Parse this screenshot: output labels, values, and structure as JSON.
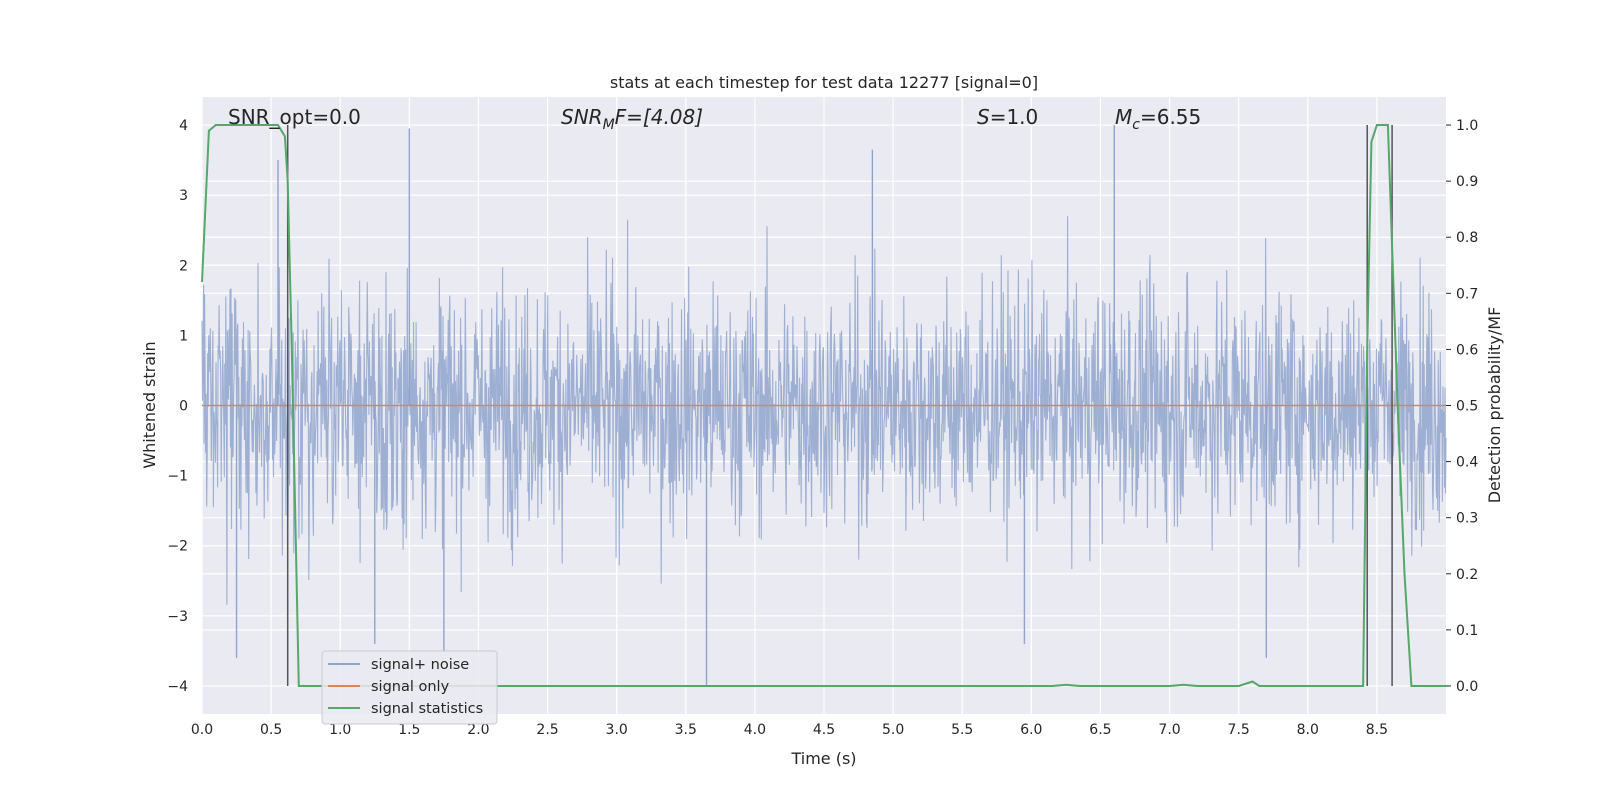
{
  "chart_data": {
    "type": "line",
    "title": "stats at each timestep for test data 12277 [signal=0]",
    "xlabel": "Time (s)",
    "ylabel": "Whitened strain",
    "y2label": "Detection probability/MF",
    "xlim": [
      0.0,
      9.0
    ],
    "ylim": [
      -4.4,
      4.4
    ],
    "y2lim": [
      -0.05,
      1.05
    ],
    "x_ticks": [
      "0.0",
      "0.5",
      "1.0",
      "1.5",
      "2.0",
      "2.5",
      "3.0",
      "3.5",
      "4.0",
      "4.5",
      "5.0",
      "5.5",
      "6.0",
      "6.5",
      "7.0",
      "7.5",
      "8.0",
      "8.5"
    ],
    "y_ticks": [
      "4",
      "3",
      "2",
      "1",
      "0",
      "−1",
      "−2",
      "−3",
      "−4"
    ],
    "y2_ticks": [
      "1.0",
      "0.9",
      "0.8",
      "0.7",
      "0.6",
      "0.5",
      "0.4",
      "0.3",
      "0.2",
      "0.1",
      "0.0"
    ],
    "grid": true,
    "legend_position": "lower-left",
    "annotations": {
      "snr_opt": "SNR_opt=0.0",
      "snr_mf_name": "SNR",
      "snr_mf_sub": "M",
      "snr_mf_rest": "F=[4.08]",
      "s_name": "S",
      "s_rest": "=1.0",
      "mc_name": "M",
      "mc_sub": "c",
      "mc_rest": "=6.55"
    },
    "series": [
      {
        "name": "signal+ noise",
        "color": "#8fa4cc",
        "note_values": "dense whitened strain noise, roughly |y| <= 2.5 with spikes to about +/-4",
        "spike_points": [
          [
            0.55,
            3.5
          ],
          [
            1.5,
            3.95
          ],
          [
            4.85,
            3.65
          ],
          [
            6.6,
            4.0
          ],
          [
            3.65,
            -4.0
          ],
          [
            0.25,
            -3.6
          ],
          [
            1.25,
            -3.4
          ],
          [
            1.75,
            -3.5
          ],
          [
            7.7,
            -3.6
          ],
          [
            5.95,
            -3.4
          ]
        ]
      },
      {
        "name": "signal only",
        "color": "#dd8452",
        "values_x": [
          0.0,
          9.0
        ],
        "values_y": [
          0.0,
          0.0
        ]
      },
      {
        "name": "signal statistics",
        "color": "#55a868",
        "axis": "right",
        "x": [
          0.0,
          0.05,
          0.1,
          0.15,
          0.2,
          0.3,
          0.4,
          0.5,
          0.55,
          0.6,
          0.62,
          0.65,
          0.7,
          0.8,
          1.0,
          2.0,
          3.0,
          4.0,
          5.0,
          6.0,
          6.15,
          6.25,
          6.35,
          6.5,
          7.0,
          7.1,
          7.2,
          7.5,
          7.6,
          7.65,
          7.7,
          8.0,
          8.4,
          8.43,
          8.46,
          8.5,
          8.58,
          8.65,
          8.7,
          8.75,
          8.8,
          8.9,
          9.0
        ],
        "y": [
          0.72,
          0.99,
          1.0,
          1.0,
          1.0,
          1.0,
          1.0,
          1.0,
          1.0,
          0.98,
          0.9,
          0.6,
          0.0,
          0.0,
          0.0,
          0.0,
          0.0,
          0.0,
          0.0,
          0.0,
          0.0,
          0.002,
          0.0,
          0.0,
          0.0,
          0.002,
          0.0,
          0.0,
          0.008,
          0.0,
          0.0,
          0.0,
          0.0,
          0.6,
          0.97,
          1.0,
          1.0,
          0.5,
          0.2,
          0.0,
          0.0,
          0.0,
          0.0
        ]
      }
    ],
    "vertical_markers": [
      {
        "x": 0.62,
        "y_from": -4.0,
        "y_to": 4.0,
        "color": "#555555"
      },
      {
        "x": 8.43,
        "y_from": -4.0,
        "y_to": 4.0,
        "color": "#555555"
      },
      {
        "x": 8.61,
        "y_from": -4.0,
        "y_to": 4.0,
        "color": "#555555"
      }
    ]
  }
}
